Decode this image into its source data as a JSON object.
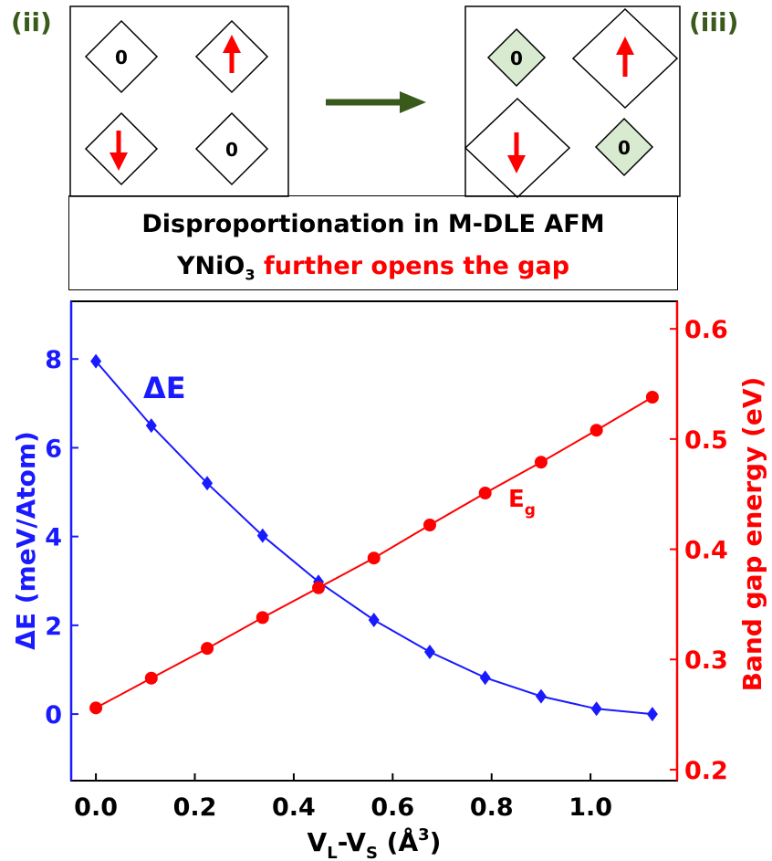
{
  "panels": {
    "left_label": "(ii)",
    "right_label": "(iii)",
    "zero_text": "0"
  },
  "caption": {
    "line1": "Disproportionation in M-DLE AFM",
    "line2_compound_main": "YNiO",
    "line2_compound_sub": "3",
    "line2_rest": " further opens the gap"
  },
  "colors": {
    "left_series": "#1a1aff",
    "right_series": "#ff0000",
    "panel_label": "#3a5a1c",
    "arrow": "#3a5a1c",
    "small_diamond_fill": "#d8ebd0"
  },
  "chart_data": {
    "type": "line",
    "x": [
      0.0,
      0.112,
      0.225,
      0.337,
      0.45,
      0.562,
      0.675,
      0.787,
      0.9,
      1.012,
      1.125
    ],
    "series": [
      {
        "name": "ΔE",
        "axis": "left",
        "marker": "diamond",
        "values": [
          7.95,
          6.5,
          5.2,
          4.02,
          2.98,
          2.12,
          1.4,
          0.82,
          0.4,
          0.12,
          0.0
        ]
      },
      {
        "name": "Eg",
        "axis": "right",
        "marker": "circle",
        "values": [
          0.256,
          0.283,
          0.31,
          0.338,
          0.365,
          0.392,
          0.422,
          0.451,
          0.479,
          0.508,
          0.538
        ]
      }
    ],
    "xlabel": {
      "main1": "V",
      "sub1": "L",
      "main2": "-V",
      "sub2": "S",
      "main3": " (Å",
      "sup": "3",
      "main4": ")"
    },
    "ylabel_left": "ΔE (meV/Atom)",
    "ylabel_right": "Band gap energy (eV)",
    "series_label_left": "ΔE",
    "series_label_right": {
      "main": "E",
      "sub": "g"
    },
    "xlim": [
      -0.05,
      1.175
    ],
    "ylim_left": [
      -1.5,
      9.3
    ],
    "ylim_right": [
      0.19,
      0.625
    ],
    "xticks": [
      "0.0",
      "0.2",
      "0.4",
      "0.6",
      "0.8",
      "1.0"
    ],
    "xtick_values": [
      0.0,
      0.2,
      0.4,
      0.6,
      0.8,
      1.0
    ],
    "yticks_left": [
      "0",
      "2",
      "4",
      "6",
      "8"
    ],
    "ytick_values_left": [
      0,
      2,
      4,
      6,
      8
    ],
    "yticks_right": [
      "0.2",
      "0.3",
      "0.4",
      "0.5",
      "0.6"
    ],
    "ytick_values_right": [
      0.2,
      0.3,
      0.4,
      0.5,
      0.6
    ]
  }
}
